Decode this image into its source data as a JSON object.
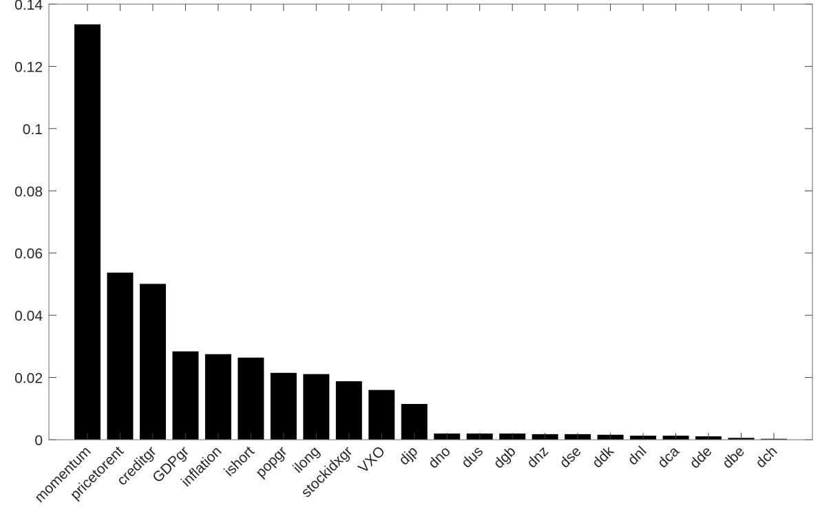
{
  "chart_data": {
    "type": "bar",
    "title": "",
    "xlabel": "",
    "ylabel": "",
    "ylim": [
      0,
      0.14
    ],
    "yticks": [
      "0",
      "0.02",
      "0.04",
      "0.06",
      "0.08",
      "0.1",
      "0.12",
      "0.14"
    ],
    "ytick_values": [
      0,
      0.02,
      0.04,
      0.06,
      0.08,
      0.1,
      0.12,
      0.14
    ],
    "grid": false,
    "bar_color": "#000000",
    "axis_color": "#808080",
    "categories": [
      "momentum",
      "pricetorent",
      "creditgr",
      "GDPgr",
      "inflation",
      "ishort",
      "popgr",
      "ilong",
      "stockidxgr",
      "VXO",
      "djp",
      "dno",
      "dus",
      "dgb",
      "dnz",
      "dse",
      "ddk",
      "dnl",
      "dca",
      "dde",
      "dbe",
      "dch"
    ],
    "values": [
      0.1335,
      0.0537,
      0.0501,
      0.0284,
      0.0275,
      0.0264,
      0.0215,
      0.0211,
      0.0188,
      0.016,
      0.0115,
      0.002,
      0.002,
      0.002,
      0.0018,
      0.0018,
      0.0016,
      0.0013,
      0.0013,
      0.0011,
      0.0006,
      0.0003
    ]
  }
}
